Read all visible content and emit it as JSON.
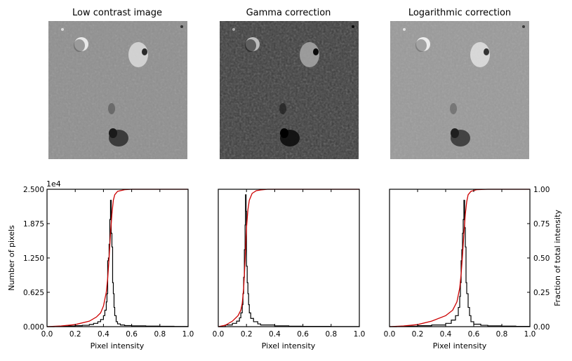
{
  "figure": {
    "panel_titles": [
      "Low contrast image",
      "Gamma correction",
      "Logarithmic correction"
    ],
    "y_offset_label": "1e4",
    "ylabel_left": "Number of pixels",
    "ylabel_right": "Fraction of total intensity",
    "xlabel": "Pixel intensity"
  },
  "chart_data": [
    {
      "type": "line",
      "title": "Low contrast image",
      "xlabel": "Pixel intensity",
      "ylabel": "Number of pixels",
      "xlim": [
        0.0,
        1.0
      ],
      "ylim": [
        0,
        25000
      ],
      "x_ticks": [
        "0.0",
        "0.2",
        "0.4",
        "0.6",
        "0.8",
        "1.0"
      ],
      "y_ticks": [
        "0.000",
        "0.625",
        "1.250",
        "1.875",
        "2.500"
      ],
      "y_tick_values": [
        0,
        6250,
        12500,
        18750,
        25000
      ],
      "grid": false,
      "series": [
        {
          "kind": "histogram",
          "color": "#000000",
          "x": [
            0.0,
            0.05,
            0.1,
            0.15,
            0.2,
            0.25,
            0.3,
            0.33,
            0.36,
            0.38,
            0.4,
            0.41,
            0.42,
            0.425,
            0.43,
            0.435,
            0.44,
            0.445,
            0.45,
            0.455,
            0.46,
            0.465,
            0.47,
            0.475,
            0.48,
            0.49,
            0.5,
            0.52,
            0.55,
            0.6,
            0.7,
            0.8,
            0.9,
            1.0
          ],
          "y": [
            0,
            50,
            80,
            120,
            180,
            250,
            400,
            600,
            900,
            1300,
            2000,
            3000,
            4500,
            6000,
            12000,
            12500,
            15000,
            19500,
            23000,
            17000,
            14500,
            8000,
            6000,
            3500,
            2000,
            900,
            500,
            300,
            200,
            150,
            100,
            60,
            30,
            0
          ]
        },
        {
          "kind": "cdf",
          "color": "#cc0000",
          "axis": "right",
          "x": [
            0.0,
            0.1,
            0.2,
            0.3,
            0.35,
            0.38,
            0.4,
            0.42,
            0.43,
            0.44,
            0.45,
            0.46,
            0.47,
            0.48,
            0.5,
            0.55,
            0.6,
            1.0
          ],
          "y": [
            0.0,
            0.005,
            0.015,
            0.04,
            0.07,
            0.1,
            0.15,
            0.25,
            0.35,
            0.5,
            0.68,
            0.82,
            0.92,
            0.96,
            0.985,
            0.997,
            1.0,
            1.0
          ]
        }
      ]
    },
    {
      "type": "line",
      "title": "Gamma correction",
      "xlabel": "Pixel intensity",
      "xlim": [
        0.0,
        1.0
      ],
      "ylim": [
        0,
        25000
      ],
      "x_ticks": [
        "0.0",
        "0.2",
        "0.4",
        "0.6",
        "0.8",
        "1.0"
      ],
      "grid": false,
      "series": [
        {
          "kind": "histogram",
          "color": "#000000",
          "x": [
            0.0,
            0.05,
            0.1,
            0.13,
            0.15,
            0.16,
            0.17,
            0.175,
            0.18,
            0.185,
            0.19,
            0.193,
            0.197,
            0.2,
            0.205,
            0.21,
            0.215,
            0.22,
            0.23,
            0.25,
            0.28,
            0.3,
            0.4,
            0.5,
            0.6,
            0.8,
            1.0
          ],
          "y": [
            0,
            300,
            600,
            1000,
            1600,
            2500,
            4000,
            6000,
            9000,
            14000,
            18500,
            24000,
            21000,
            11000,
            8000,
            6000,
            4000,
            2500,
            1500,
            900,
            500,
            300,
            150,
            80,
            50,
            20,
            0
          ]
        },
        {
          "kind": "cdf",
          "color": "#cc0000",
          "axis": "right",
          "x": [
            0.0,
            0.05,
            0.1,
            0.14,
            0.16,
            0.17,
            0.18,
            0.19,
            0.195,
            0.2,
            0.21,
            0.22,
            0.24,
            0.27,
            0.3,
            0.35,
            0.4,
            1.0
          ],
          "y": [
            0.0,
            0.01,
            0.04,
            0.08,
            0.12,
            0.17,
            0.28,
            0.48,
            0.6,
            0.72,
            0.85,
            0.92,
            0.97,
            0.99,
            0.995,
            1.0,
            1.0,
            1.0
          ]
        }
      ]
    },
    {
      "type": "line",
      "title": "Logarithmic correction",
      "xlabel": "Pixel intensity",
      "ylabel": "Fraction of total intensity",
      "xlim": [
        0.0,
        1.0
      ],
      "ylim": [
        0.0,
        1.0
      ],
      "x_ticks": [
        "0.0",
        "0.2",
        "0.4",
        "0.6",
        "0.8",
        "1.0"
      ],
      "y_ticks": [
        "0.00",
        "0.25",
        "0.50",
        "0.75",
        "1.00"
      ],
      "y_tick_values": [
        0.0,
        0.25,
        0.5,
        0.75,
        1.0
      ],
      "grid": false,
      "series": [
        {
          "kind": "histogram",
          "color": "#000000",
          "x": [
            0.0,
            0.05,
            0.1,
            0.2,
            0.3,
            0.4,
            0.44,
            0.47,
            0.49,
            0.5,
            0.505,
            0.51,
            0.515,
            0.52,
            0.525,
            0.53,
            0.535,
            0.54,
            0.545,
            0.55,
            0.56,
            0.57,
            0.58,
            0.6,
            0.65,
            0.7,
            0.8,
            0.9,
            1.0
          ],
          "y": [
            0,
            50,
            80,
            180,
            300,
            600,
            1200,
            2000,
            3500,
            5500,
            8000,
            12000,
            14000,
            17000,
            19500,
            23000,
            18000,
            14500,
            8000,
            6000,
            3500,
            2000,
            900,
            450,
            250,
            150,
            100,
            50,
            0
          ]
        },
        {
          "kind": "cdf",
          "color": "#cc0000",
          "axis": "right",
          "x": [
            0.0,
            0.1,
            0.2,
            0.3,
            0.4,
            0.45,
            0.48,
            0.5,
            0.51,
            0.52,
            0.53,
            0.54,
            0.55,
            0.56,
            0.58,
            0.62,
            0.7,
            1.0
          ],
          "y": [
            0.0,
            0.005,
            0.015,
            0.04,
            0.08,
            0.12,
            0.18,
            0.28,
            0.38,
            0.52,
            0.68,
            0.82,
            0.91,
            0.96,
            0.985,
            0.997,
            1.0,
            1.0
          ]
        }
      ]
    }
  ]
}
